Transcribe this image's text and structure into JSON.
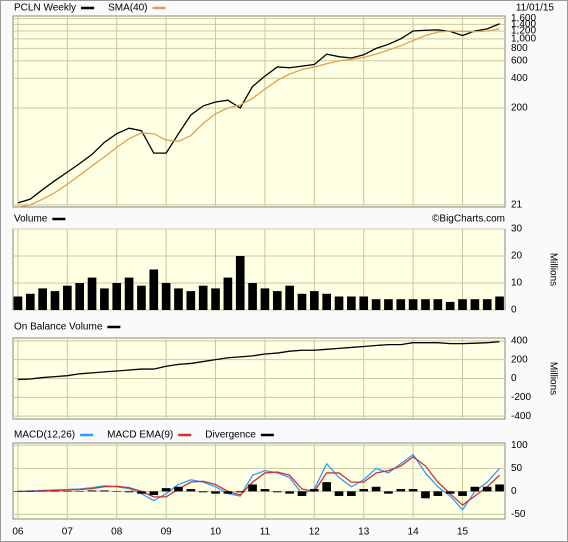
{
  "chart_data": [
    {
      "type": "line",
      "annotation": "11/01/15",
      "log_y": true,
      "grid": true,
      "x": [
        2006,
        2006.25,
        2006.5,
        2006.75,
        2007,
        2007.25,
        2007.5,
        2007.75,
        2008,
        2008.25,
        2008.5,
        2008.75,
        2009,
        2009.25,
        2009.5,
        2009.75,
        2010,
        2010.25,
        2010.5,
        2010.75,
        2011,
        2011.25,
        2011.5,
        2011.75,
        2012,
        2012.25,
        2012.5,
        2012.75,
        2013,
        2013.25,
        2013.5,
        2013.75,
        2014,
        2014.25,
        2014.5,
        2014.75,
        2015,
        2015.25,
        2015.5,
        2015.75
      ],
      "xlim": [
        2005.9,
        2015.86
      ],
      "ylim": [
        20,
        1700
      ],
      "yticks": [
        21,
        200,
        400,
        600,
        800,
        {
          "value": 1000,
          "label": "1,000"
        },
        {
          "value": 1200,
          "label": "1,200"
        },
        {
          "value": 1400,
          "label": "1,400"
        },
        {
          "value": 1600,
          "label": "1,600"
        }
      ],
      "series": [
        {
          "name": "PCLN Weekly",
          "color": "#000000",
          "values": [
            22,
            24,
            30,
            37,
            45,
            55,
            68,
            90,
            110,
            125,
            118,
            70,
            70,
            110,
            170,
            210,
            230,
            240,
            200,
            330,
            420,
            520,
            510,
            530,
            550,
            700,
            660,
            640,
            690,
            800,
            880,
            1000,
            1200,
            1220,
            1230,
            1190,
            1080,
            1200,
            1260,
            1420
          ]
        },
        {
          "name": "SMA(40)",
          "color": "#e0a050",
          "values": [
            20,
            21,
            24,
            28,
            34,
            42,
            52,
            64,
            80,
            98,
            112,
            110,
            95,
            92,
            105,
            140,
            175,
            200,
            215,
            250,
            310,
            380,
            440,
            490,
            520,
            560,
            600,
            620,
            650,
            700,
            770,
            850,
            960,
            1080,
            1170,
            1200,
            1190,
            1180,
            1200,
            1260
          ]
        }
      ]
    },
    {
      "type": "bar",
      "annotation": "©BigCharts.com",
      "y_label": "Millions",
      "grid": true,
      "x": [
        2006,
        2006.25,
        2006.5,
        2006.75,
        2007,
        2007.25,
        2007.5,
        2007.75,
        2008,
        2008.25,
        2008.5,
        2008.75,
        2009,
        2009.25,
        2009.5,
        2009.75,
        2010,
        2010.25,
        2010.5,
        2010.75,
        2011,
        2011.25,
        2011.5,
        2011.75,
        2012,
        2012.25,
        2012.5,
        2012.75,
        2013,
        2013.25,
        2013.5,
        2013.75,
        2014,
        2014.25,
        2014.5,
        2014.75,
        2015,
        2015.25,
        2015.5,
        2015.75
      ],
      "xlim": [
        2005.9,
        2015.86
      ],
      "ylim": [
        0,
        30
      ],
      "yticks": [
        0,
        10,
        20,
        30
      ],
      "series": [
        {
          "name": "Volume",
          "color": "#000000",
          "values": [
            5,
            6,
            8,
            7,
            9,
            10,
            12,
            8,
            10,
            12,
            9,
            15,
            10,
            8,
            7,
            9,
            8,
            12,
            20,
            10,
            8,
            7,
            9,
            6,
            7,
            6,
            5,
            5,
            5,
            4,
            4,
            4,
            4,
            4,
            4,
            3,
            4,
            4,
            4,
            5
          ]
        }
      ]
    },
    {
      "type": "line",
      "y_label": "Millions",
      "grid": true,
      "x": [
        2006,
        2006.25,
        2006.5,
        2006.75,
        2007,
        2007.25,
        2007.5,
        2007.75,
        2008,
        2008.25,
        2008.5,
        2008.75,
        2009,
        2009.25,
        2009.5,
        2009.75,
        2010,
        2010.25,
        2010.5,
        2010.75,
        2011,
        2011.25,
        2011.5,
        2011.75,
        2012,
        2012.25,
        2012.5,
        2012.75,
        2013,
        2013.25,
        2013.5,
        2013.75,
        2014,
        2014.25,
        2014.5,
        2014.75,
        2015,
        2015.25,
        2015.5,
        2015.75
      ],
      "xlim": [
        2005.9,
        2015.86
      ],
      "ylim": [
        -430,
        430
      ],
      "yticks": [
        -400,
        -200,
        0,
        200,
        400
      ],
      "series": [
        {
          "name": "On Balance Volume",
          "color": "#000000",
          "values": [
            -10,
            -5,
            10,
            20,
            30,
            50,
            60,
            70,
            80,
            90,
            100,
            100,
            130,
            150,
            160,
            180,
            200,
            220,
            230,
            240,
            260,
            270,
            290,
            300,
            300,
            310,
            320,
            330,
            340,
            350,
            360,
            360,
            380,
            380,
            380,
            370,
            370,
            375,
            380,
            390
          ]
        }
      ]
    },
    {
      "type": "line",
      "grid": true,
      "x": [
        2006,
        2006.25,
        2006.5,
        2006.75,
        2007,
        2007.25,
        2007.5,
        2007.75,
        2008,
        2008.25,
        2008.5,
        2008.75,
        2009,
        2009.25,
        2009.5,
        2009.75,
        2010,
        2010.25,
        2010.5,
        2010.75,
        2011,
        2011.25,
        2011.5,
        2011.75,
        2012,
        2012.25,
        2012.5,
        2012.75,
        2013,
        2013.25,
        2013.5,
        2013.75,
        2014,
        2014.25,
        2014.5,
        2014.75,
        2015,
        2015.25,
        2015.5,
        2015.75
      ],
      "xlim": [
        2005.9,
        2015.86
      ],
      "xticks": [
        {
          "value": 2006,
          "label": "06"
        },
        {
          "value": 2007,
          "label": "07"
        },
        {
          "value": 2008,
          "label": "08"
        },
        {
          "value": 2009,
          "label": "09"
        },
        {
          "value": 2010,
          "label": "10"
        },
        {
          "value": 2011,
          "label": "11"
        },
        {
          "value": 2012,
          "label": "12"
        },
        {
          "value": 2013,
          "label": "13"
        },
        {
          "value": 2014,
          "label": "14"
        },
        {
          "value": 2015,
          "label": "15"
        }
      ],
      "ylim": [
        -60,
        105
      ],
      "yticks": [
        -50,
        0,
        50,
        100
      ],
      "series": [
        {
          "name": "MACD(12,26)",
          "color": "#3399ff",
          "values": [
            0,
            1,
            2,
            3,
            4,
            5,
            8,
            12,
            10,
            6,
            -5,
            -20,
            -5,
            15,
            25,
            20,
            10,
            -5,
            -10,
            35,
            45,
            40,
            30,
            -5,
            5,
            60,
            30,
            10,
            25,
            50,
            40,
            60,
            80,
            40,
            10,
            -10,
            -40,
            0,
            20,
            50
          ]
        },
        {
          "name": "MACD EMA(9)",
          "color": "#cc3333",
          "values": [
            0,
            0,
            1,
            2,
            3,
            4,
            6,
            10,
            11,
            8,
            0,
            -12,
            -12,
            5,
            20,
            22,
            15,
            0,
            -8,
            20,
            40,
            42,
            35,
            5,
            0,
            40,
            40,
            20,
            20,
            40,
            45,
            55,
            75,
            55,
            20,
            -5,
            -30,
            -10,
            10,
            35
          ]
        },
        {
          "name": "Divergence",
          "color": "#000000",
          "mark": "bar",
          "values": [
            0,
            1,
            1,
            1,
            1,
            1,
            2,
            2,
            -1,
            -2,
            -5,
            -8,
            7,
            10,
            5,
            -2,
            -5,
            -5,
            -2,
            15,
            5,
            -2,
            -5,
            -10,
            5,
            20,
            -10,
            -10,
            5,
            10,
            -5,
            5,
            5,
            -15,
            -10,
            -5,
            -10,
            10,
            10,
            15
          ]
        }
      ]
    }
  ]
}
